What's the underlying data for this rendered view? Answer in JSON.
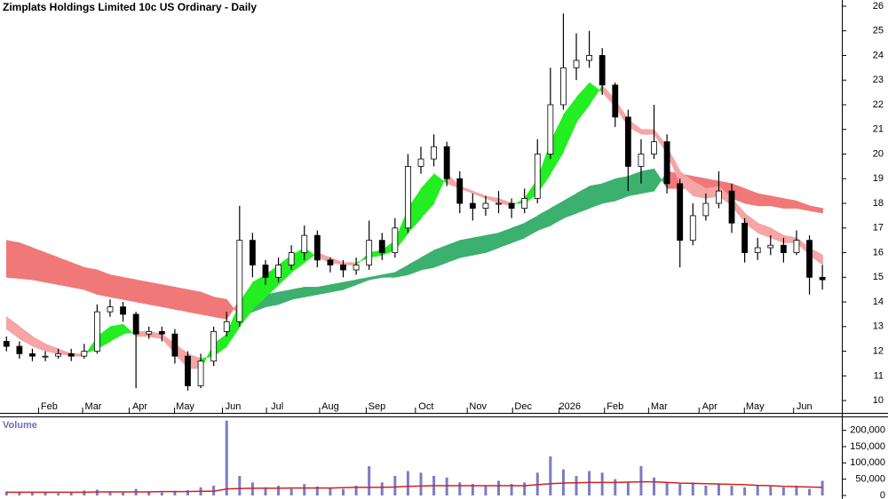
{
  "chart_data": [
    {
      "type": "candlestick",
      "title": "Zimplats Holdings Limited 10c US Ordinary - Daily",
      "xlim": [
        -0.5,
        64.5
      ],
      "xticks": [
        {
          "value": 3.3,
          "label": "Feb"
        },
        {
          "value": 6.7,
          "label": "Mar"
        },
        {
          "value": 10.3,
          "label": "Apr"
        },
        {
          "value": 13.8,
          "label": "May"
        },
        {
          "value": 17.5,
          "label": "Jun"
        },
        {
          "value": 20.9,
          "label": "Jul"
        },
        {
          "value": 25.0,
          "label": "Aug"
        },
        {
          "value": 28.6,
          "label": "Sep"
        },
        {
          "value": 32.4,
          "label": "Oct"
        },
        {
          "value": 36.4,
          "label": "Nov"
        },
        {
          "value": 39.9,
          "label": "Dec"
        },
        {
          "value": 43.5,
          "label": "2026"
        },
        {
          "value": 47.0,
          "label": "Feb"
        },
        {
          "value": 50.4,
          "label": "Mar"
        },
        {
          "value": 54.3,
          "label": "Apr"
        },
        {
          "value": 57.8,
          "label": "May"
        },
        {
          "value": 61.6,
          "label": "Jun"
        }
      ],
      "ylim": [
        9.5,
        26.25
      ],
      "yticks": [
        10,
        11,
        12,
        13,
        14,
        15,
        16,
        17,
        18,
        19,
        20,
        21,
        22,
        23,
        24,
        25,
        26
      ],
      "up_color": "#ffffff",
      "down_color": "#000000",
      "open": [
        12.4,
        12.2,
        11.9,
        11.8,
        11.8,
        11.9,
        11.8,
        12.0,
        13.6,
        13.8,
        13.5,
        12.7,
        12.8,
        12.7,
        11.8,
        10.6,
        11.6,
        12.8,
        13.2,
        16.5,
        15.5,
        15.0,
        15.5,
        16.0,
        16.7,
        15.7,
        15.5,
        15.3,
        15.5,
        16.5,
        16.0,
        17.0,
        19.5,
        19.8,
        20.3,
        19.0,
        18.0,
        17.8,
        18.0,
        18.0,
        17.8,
        18.2,
        20.0,
        22.0,
        23.5,
        23.8,
        24.0,
        22.8,
        21.5,
        19.5,
        20.0,
        20.5,
        18.8,
        16.5,
        17.5,
        18.0,
        18.5,
        17.2,
        16.0,
        16.2,
        16.3,
        16.0,
        16.5,
        15.0
      ],
      "high": [
        12.6,
        12.4,
        12.1,
        12.0,
        12.1,
        12.1,
        12.3,
        13.9,
        14.1,
        14.0,
        13.6,
        13.0,
        13.0,
        12.9,
        12.0,
        11.9,
        13.0,
        13.6,
        17.9,
        16.8,
        15.7,
        15.8,
        16.3,
        17.1,
        16.9,
        15.8,
        15.7,
        15.8,
        17.3,
        16.8,
        17.4,
        20.0,
        20.3,
        20.8,
        20.5,
        19.3,
        18.4,
        18.3,
        18.5,
        18.2,
        18.6,
        20.6,
        23.5,
        25.7,
        24.9,
        25.0,
        24.3,
        22.9,
        21.8,
        20.6,
        22.0,
        20.8,
        19.0,
        18.0,
        18.4,
        19.3,
        18.8,
        17.4,
        16.6,
        16.7,
        16.6,
        16.9,
        16.7,
        15.5
      ],
      "low": [
        12.0,
        11.7,
        11.6,
        11.6,
        11.7,
        11.6,
        11.7,
        11.9,
        13.4,
        13.2,
        10.5,
        12.5,
        12.4,
        11.5,
        10.4,
        10.5,
        11.4,
        12.6,
        13.0,
        15.0,
        14.7,
        14.8,
        15.3,
        15.7,
        15.4,
        15.2,
        15.0,
        15.1,
        15.3,
        15.7,
        15.8,
        16.8,
        19.2,
        19.5,
        18.7,
        17.6,
        17.3,
        17.5,
        17.6,
        17.4,
        17.6,
        18.0,
        19.8,
        21.8,
        23.0,
        23.5,
        22.4,
        21.1,
        18.5,
        18.8,
        19.8,
        18.4,
        15.4,
        16.3,
        17.3,
        17.8,
        16.8,
        15.6,
        15.7,
        15.9,
        15.6,
        15.9,
        14.3,
        14.5
      ],
      "close": [
        12.2,
        11.9,
        11.8,
        11.8,
        11.9,
        11.8,
        12.0,
        13.6,
        13.8,
        13.5,
        12.7,
        12.8,
        12.7,
        11.8,
        10.6,
        11.6,
        12.8,
        13.2,
        16.5,
        15.5,
        15.0,
        15.5,
        16.0,
        16.7,
        15.7,
        15.5,
        15.3,
        15.5,
        16.5,
        16.0,
        17.0,
        19.5,
        19.8,
        20.3,
        19.0,
        18.0,
        17.8,
        18.0,
        18.0,
        17.8,
        18.2,
        20.0,
        22.0,
        23.5,
        23.8,
        24.0,
        22.8,
        21.5,
        19.5,
        20.0,
        20.5,
        18.8,
        16.5,
        17.5,
        18.0,
        18.5,
        17.2,
        16.0,
        16.2,
        16.3,
        16.0,
        16.5,
        15.0,
        14.9
      ],
      "ribbons": [
        {
          "up_color": "#3cb06e",
          "down_color": "#f07878",
          "fast": [
            15.0,
            14.95,
            14.9,
            14.8,
            14.7,
            14.6,
            14.5,
            14.3,
            14.2,
            14.1,
            14.0,
            13.9,
            13.8,
            13.7,
            13.6,
            13.5,
            13.4,
            13.3,
            14.1,
            14.2,
            14.3,
            14.4,
            14.5,
            14.6,
            14.6,
            14.7,
            14.8,
            14.9,
            15.0,
            15.1,
            15.2,
            15.5,
            15.8,
            16.1,
            16.3,
            16.5,
            16.6,
            16.7,
            16.8,
            17.0,
            17.2,
            17.5,
            17.8,
            18.1,
            18.4,
            18.7,
            18.8,
            19.0,
            19.1,
            19.3,
            19.4,
            18.6,
            18.6,
            18.6,
            18.6,
            18.4,
            18.2,
            18.0,
            17.9,
            17.9,
            17.8,
            17.8,
            17.7,
            17.6
          ],
          "slow": [
            16.5,
            16.4,
            16.2,
            16.0,
            15.8,
            15.6,
            15.4,
            15.3,
            15.1,
            15.0,
            14.9,
            14.8,
            14.7,
            14.6,
            14.5,
            14.4,
            14.2,
            14.1,
            13.4,
            13.6,
            13.8,
            13.9,
            14.1,
            14.2,
            14.3,
            14.4,
            14.5,
            14.7,
            14.9,
            15.0,
            15.0,
            15.1,
            15.3,
            15.4,
            15.6,
            15.8,
            15.9,
            16.0,
            16.2,
            16.4,
            16.6,
            16.9,
            17.1,
            17.4,
            17.6,
            17.8,
            18.0,
            18.1,
            18.3,
            18.4,
            18.5,
            19.3,
            19.2,
            19.1,
            19.0,
            18.9,
            18.8,
            18.6,
            18.4,
            18.3,
            18.2,
            18.1,
            17.9,
            17.8
          ]
        },
        {
          "up_color": "#22ee22",
          "down_color": "#f5a5a5",
          "fast": [
            12.9,
            12.5,
            12.2,
            12.0,
            11.9,
            11.8,
            11.8,
            12.6,
            13.0,
            13.1,
            12.6,
            12.6,
            12.5,
            11.9,
            11.3,
            11.3,
            12.3,
            12.7,
            14.0,
            14.8,
            15.1,
            15.5,
            15.9,
            16.2,
            15.8,
            15.6,
            15.5,
            15.5,
            16.0,
            16.1,
            16.5,
            17.8,
            18.6,
            19.2,
            18.8,
            18.6,
            18.4,
            18.2,
            18.0,
            17.9,
            18.2,
            19.0,
            20.5,
            21.6,
            22.3,
            22.9,
            22.5,
            21.9,
            21.1,
            20.8,
            20.8,
            20.0,
            18.8,
            18.3,
            18.2,
            18.3,
            17.9,
            17.2,
            16.8,
            16.6,
            16.4,
            16.4,
            15.9,
            15.5
          ],
          "slow": [
            13.4,
            13.0,
            12.6,
            12.3,
            12.1,
            11.9,
            11.9,
            12.1,
            12.4,
            12.7,
            12.8,
            12.8,
            12.7,
            12.3,
            11.9,
            11.7,
            11.8,
            12.2,
            13.0,
            13.7,
            14.2,
            14.7,
            15.2,
            15.6,
            16.0,
            15.8,
            15.6,
            15.6,
            15.8,
            15.9,
            16.1,
            16.8,
            17.4,
            18.0,
            19.2,
            18.7,
            18.5,
            18.3,
            18.2,
            18.0,
            18.0,
            18.4,
            19.2,
            20.1,
            21.3,
            22.0,
            22.8,
            22.2,
            21.4,
            21.0,
            21.0,
            20.3,
            19.3,
            18.9,
            18.6,
            18.7,
            18.2,
            17.6,
            17.2,
            17.0,
            16.7,
            16.6,
            16.2,
            15.9
          ]
        }
      ]
    },
    {
      "type": "bar",
      "title": "Volume",
      "xlim": [
        -0.5,
        64.5
      ],
      "ylim": [
        0,
        240000
      ],
      "yticks": [
        0,
        {
          "value": 50000,
          "label": "50,000"
        },
        {
          "value": 100000,
          "label": "100,000"
        },
        {
          "value": 150000,
          "label": "150,000"
        },
        {
          "value": 200000,
          "label": "200,000"
        }
      ],
      "color": "#7b7bc8",
      "average_color": "#d42020",
      "values": [
        12000,
        8000,
        9000,
        11000,
        7000,
        10000,
        15000,
        18000,
        12000,
        9000,
        20000,
        11000,
        9000,
        14000,
        16000,
        25000,
        30000,
        230000,
        60000,
        40000,
        25000,
        30000,
        20000,
        35000,
        28000,
        22000,
        20000,
        30000,
        90000,
        40000,
        60000,
        75000,
        70000,
        60000,
        55000,
        40000,
        35000,
        30000,
        45000,
        35000,
        40000,
        70000,
        120000,
        80000,
        60000,
        75000,
        70000,
        50000,
        40000,
        90000,
        55000,
        40000,
        35000,
        40000,
        30000,
        35000,
        30000,
        25000,
        30000,
        28000,
        25000,
        30000,
        20000,
        45000
      ],
      "average": [
        10000,
        10000,
        10000,
        10000,
        10000,
        10000,
        10000,
        11000,
        11000,
        11000,
        11000,
        11000,
        12000,
        12000,
        12000,
        13000,
        13000,
        20000,
        21000,
        22000,
        22000,
        22000,
        23000,
        23000,
        23000,
        23000,
        24000,
        25000,
        25000,
        25000,
        26000,
        28000,
        29000,
        30000,
        30000,
        30000,
        30000,
        30000,
        30000,
        30000,
        30000,
        33000,
        36000,
        38000,
        39000,
        40000,
        40000,
        40000,
        41000,
        42000,
        42000,
        40000,
        38000,
        37000,
        36000,
        35000,
        34000,
        33000,
        31000,
        30000,
        28000,
        27000,
        26000,
        25000
      ]
    }
  ]
}
